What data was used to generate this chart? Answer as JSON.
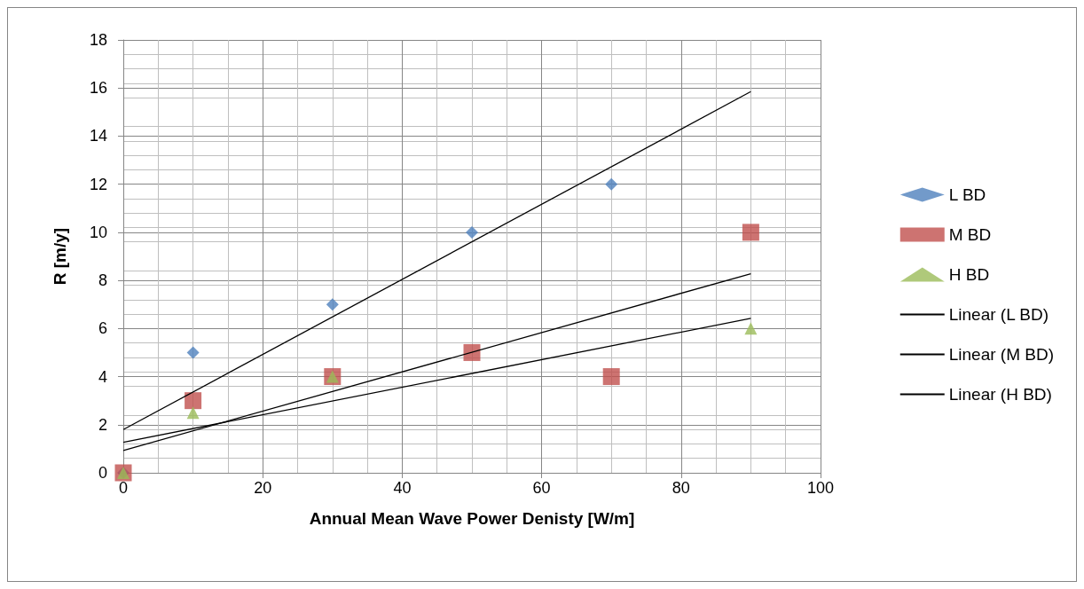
{
  "chart_data": {
    "type": "scatter",
    "xlabel": "Annual Mean Wave Power Denisty [W/m]",
    "ylabel": "R [m/y]",
    "xlim": [
      0,
      100
    ],
    "xticks": [
      0,
      20,
      40,
      60,
      80,
      100
    ],
    "ylim": [
      0,
      18
    ],
    "yticks": [
      0,
      2,
      4,
      6,
      8,
      10,
      12,
      14,
      16,
      18
    ],
    "grid": true,
    "legend": "right",
    "series": [
      {
        "name": "L BD",
        "color": "#4f81bd",
        "marker": "diamond",
        "x": [
          0,
          10,
          30,
          50,
          70
        ],
        "values": [
          0,
          5,
          7,
          10,
          12
        ]
      },
      {
        "name": "M BD",
        "color": "#c0504d",
        "marker": "square",
        "x": [
          0,
          10,
          30,
          50,
          70,
          90
        ],
        "values": [
          0,
          3,
          4,
          5,
          4,
          10
        ]
      },
      {
        "name": "H BD",
        "color": "#9bbb59",
        "marker": "triangle",
        "x": [
          0,
          10,
          30,
          90
        ],
        "values": [
          0,
          2.5,
          4,
          6
        ]
      },
      {
        "name": "Linear (L BD)",
        "type": "line",
        "color": "#000000",
        "marker": "none",
        "x": [
          0,
          90
        ],
        "values": [
          1.8,
          15.85
        ]
      },
      {
        "name": "Linear (M BD)",
        "type": "line",
        "color": "#000000",
        "marker": "none",
        "x": [
          0,
          90
        ],
        "values": [
          0.93,
          8.28
        ]
      },
      {
        "name": "Linear (H BD)",
        "type": "line",
        "color": "#000000",
        "marker": "none",
        "x": [
          0,
          90
        ],
        "values": [
          1.27,
          6.42
        ]
      }
    ]
  }
}
